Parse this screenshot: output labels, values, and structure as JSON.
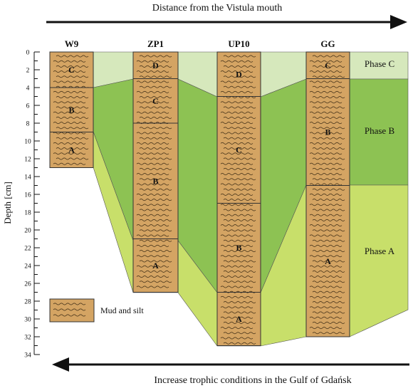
{
  "header": {
    "top_arrow_label": "Distance from the Vistula mouth",
    "bottom_arrow_label": "Increase trophic conditions in the Gulf of Gdańsk"
  },
  "axis": {
    "label": "Depth [cm]",
    "min": 0,
    "max": 34,
    "ticks": [
      "0",
      "2",
      "4",
      "6",
      "8",
      "10",
      "12",
      "14",
      "16",
      "18",
      "20",
      "22",
      "24",
      "26",
      "28",
      "30",
      "32",
      "34"
    ]
  },
  "cores": [
    {
      "name": "W9",
      "bottom_depth": 13,
      "units": [
        {
          "label": "C",
          "top": 0,
          "bottom": 4
        },
        {
          "label": "B",
          "top": 4,
          "bottom": 9
        },
        {
          "label": "A",
          "top": 9,
          "bottom": 13
        }
      ]
    },
    {
      "name": "ZP1",
      "bottom_depth": 27,
      "units": [
        {
          "label": "D",
          "top": 0,
          "bottom": 3
        },
        {
          "label": "C",
          "top": 3,
          "bottom": 8
        },
        {
          "label": "B",
          "top": 8,
          "bottom": 21
        },
        {
          "label": "A",
          "top": 21,
          "bottom": 27
        }
      ]
    },
    {
      "name": "UP10",
      "bottom_depth": 33,
      "units": [
        {
          "label": "D",
          "top": 0,
          "bottom": 5
        },
        {
          "label": "C",
          "top": 5,
          "bottom": 17
        },
        {
          "label": "B",
          "top": 17,
          "bottom": 27
        },
        {
          "label": "A",
          "top": 27,
          "bottom": 33
        }
      ]
    },
    {
      "name": "GG",
      "bottom_depth": 32,
      "units": [
        {
          "label": "C",
          "top": 0,
          "bottom": 3
        },
        {
          "label": "B",
          "top": 3,
          "bottom": 15
        },
        {
          "label": "A",
          "top": 15,
          "bottom": 32
        }
      ]
    }
  ],
  "phases": [
    {
      "label": "Phase C",
      "color": "#d6e8bc"
    },
    {
      "label": "Phase B",
      "color": "#8dc253"
    },
    {
      "label": "Phase A",
      "color": "#c8df6a"
    }
  ],
  "legend": {
    "label": "Mud and silt",
    "color": "#d4a463"
  }
}
